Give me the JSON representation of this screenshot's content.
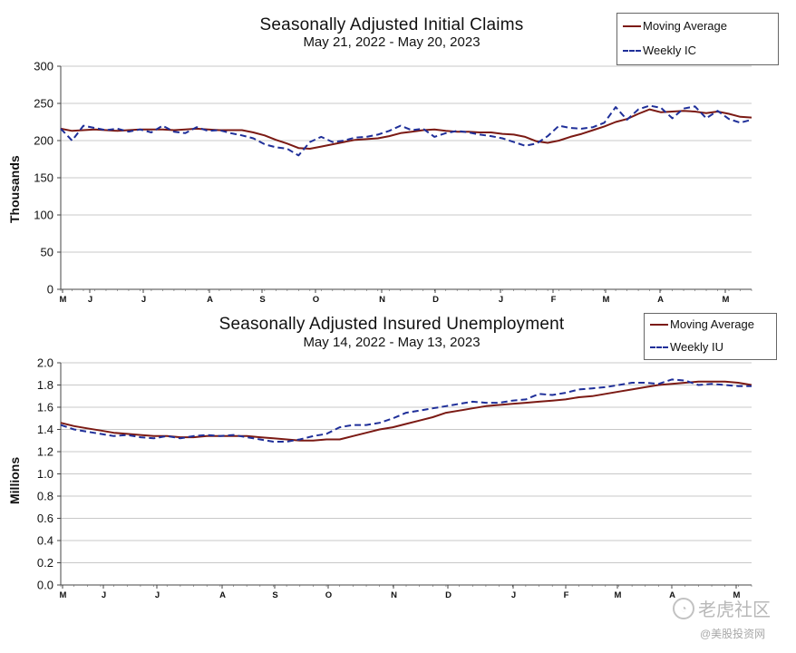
{
  "chart_data": [
    {
      "type": "line",
      "title": "Seasonally Adjusted Initial Claims",
      "subtitle": "May 21, 2022 - May 20, 2023",
      "ylabel": "Thousands",
      "xlabel": "",
      "ylim": [
        0,
        300
      ],
      "yticks": [
        "0",
        "50",
        "100",
        "150",
        "200",
        "250",
        "300"
      ],
      "xticks": [
        "M",
        "J",
        "J",
        "A",
        "S",
        "O",
        "N",
        "D",
        "J",
        "F",
        "M",
        "A",
        "M"
      ],
      "grid": true,
      "legend_position": "top-right",
      "series": [
        {
          "name": "Moving Average",
          "style": "solid",
          "color": "#7b1a14",
          "values": [
            216,
            213,
            214,
            215,
            214,
            213,
            214,
            215,
            215,
            215,
            214,
            215,
            216,
            215,
            214,
            214,
            214,
            211,
            207,
            201,
            196,
            190,
            189,
            192,
            195,
            198,
            201,
            202,
            203,
            206,
            210,
            212,
            214,
            215,
            213,
            212,
            212,
            211,
            211,
            209,
            208,
            205,
            199,
            197,
            200,
            205,
            209,
            214,
            219,
            225,
            229,
            236,
            242,
            238,
            239,
            240,
            239,
            237,
            239,
            236,
            232,
            231
          ]
        },
        {
          "name": "Weekly IC",
          "style": "dashed",
          "color": "#1f2f99",
          "values": [
            216,
            200,
            220,
            217,
            214,
            216,
            212,
            215,
            211,
            220,
            212,
            210,
            218,
            213,
            214,
            210,
            207,
            203,
            195,
            191,
            189,
            180,
            198,
            205,
            198,
            200,
            204,
            205,
            208,
            213,
            220,
            214,
            216,
            205,
            210,
            213,
            211,
            208,
            206,
            203,
            198,
            193,
            196,
            206,
            220,
            217,
            216,
            218,
            224,
            245,
            228,
            242,
            247,
            244,
            230,
            243,
            246,
            230,
            240,
            229,
            224,
            228
          ]
        }
      ]
    },
    {
      "type": "line",
      "title": "Seasonally Adjusted Insured Unemployment",
      "subtitle": "May 14, 2022 - May 13, 2023",
      "ylabel": "Millions",
      "xlabel": "",
      "ylim": [
        0.0,
        2.0
      ],
      "yticks": [
        "0.0",
        "0.2",
        "0.4",
        "0.6",
        "0.8",
        "1.0",
        "1.2",
        "1.4",
        "1.6",
        "1.8",
        "2.0"
      ],
      "xticks": [
        "M",
        "J",
        "J",
        "A",
        "S",
        "O",
        "N",
        "D",
        "J",
        "F",
        "M",
        "A",
        "M"
      ],
      "grid": true,
      "legend_position": "top-right",
      "series": [
        {
          "name": "Moving Average",
          "style": "solid",
          "color": "#7b1a14",
          "values": [
            1.46,
            1.43,
            1.41,
            1.39,
            1.37,
            1.36,
            1.35,
            1.34,
            1.34,
            1.33,
            1.33,
            1.34,
            1.34,
            1.34,
            1.34,
            1.33,
            1.32,
            1.31,
            1.3,
            1.3,
            1.31,
            1.31,
            1.34,
            1.37,
            1.4,
            1.42,
            1.45,
            1.48,
            1.51,
            1.55,
            1.57,
            1.59,
            1.61,
            1.62,
            1.63,
            1.64,
            1.65,
            1.66,
            1.67,
            1.69,
            1.7,
            1.72,
            1.74,
            1.76,
            1.78,
            1.8,
            1.81,
            1.82,
            1.83,
            1.83,
            1.83,
            1.82,
            1.8
          ]
        },
        {
          "name": "Weekly IU",
          "style": "dashed",
          "color": "#1f2f99",
          "values": [
            1.44,
            1.4,
            1.38,
            1.36,
            1.34,
            1.35,
            1.33,
            1.32,
            1.34,
            1.32,
            1.34,
            1.35,
            1.34,
            1.35,
            1.33,
            1.31,
            1.29,
            1.29,
            1.31,
            1.34,
            1.36,
            1.42,
            1.44,
            1.44,
            1.46,
            1.5,
            1.55,
            1.57,
            1.59,
            1.61,
            1.63,
            1.65,
            1.64,
            1.64,
            1.66,
            1.67,
            1.72,
            1.71,
            1.73,
            1.76,
            1.77,
            1.78,
            1.8,
            1.82,
            1.82,
            1.81,
            1.85,
            1.84,
            1.8,
            1.81,
            1.8,
            1.79,
            1.79
          ]
        }
      ]
    }
  ],
  "watermark": {
    "logo_text": "老虎社区",
    "sub_text": "@美股投资网"
  }
}
